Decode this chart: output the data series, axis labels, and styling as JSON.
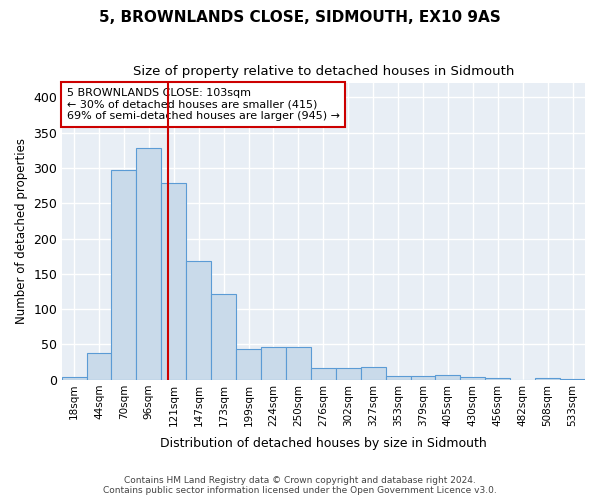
{
  "title": "5, BROWNLANDS CLOSE, SIDMOUTH, EX10 9AS",
  "subtitle": "Size of property relative to detached houses in Sidmouth",
  "xlabel": "Distribution of detached houses by size in Sidmouth",
  "ylabel": "Number of detached properties",
  "footer1": "Contains HM Land Registry data © Crown copyright and database right 2024.",
  "footer2": "Contains public sector information licensed under the Open Government Licence v3.0.",
  "bin_labels": [
    "18sqm",
    "44sqm",
    "70sqm",
    "96sqm",
    "121sqm",
    "147sqm",
    "173sqm",
    "199sqm",
    "224sqm",
    "250sqm",
    "276sqm",
    "302sqm",
    "327sqm",
    "353sqm",
    "379sqm",
    "405sqm",
    "430sqm",
    "456sqm",
    "482sqm",
    "508sqm",
    "533sqm"
  ],
  "bar_values": [
    3,
    38,
    297,
    328,
    278,
    168,
    121,
    44,
    46,
    46,
    16,
    17,
    18,
    5,
    5,
    6,
    3,
    2,
    0,
    2,
    1
  ],
  "bar_color": "#c9daea",
  "bar_edge_color": "#5b9bd5",
  "property_line_x": 3.77,
  "annotation_line0": "5 BROWNLANDS CLOSE: 103sqm",
  "annotation_line1": "← 30% of detached houses are smaller (415)",
  "annotation_line2": "69% of semi-detached houses are larger (945) →",
  "annotation_box_color": "#ffffff",
  "annotation_box_edge": "#cc0000",
  "vline_color": "#cc0000",
  "ylim": [
    0,
    420
  ],
  "yticks": [
    0,
    50,
    100,
    150,
    200,
    250,
    300,
    350,
    400
  ],
  "fig_bg_color": "#ffffff",
  "plot_bg_color": "#e8eef5",
  "grid_color": "#ffffff",
  "title_fontsize": 11,
  "subtitle_fontsize": 9.5
}
